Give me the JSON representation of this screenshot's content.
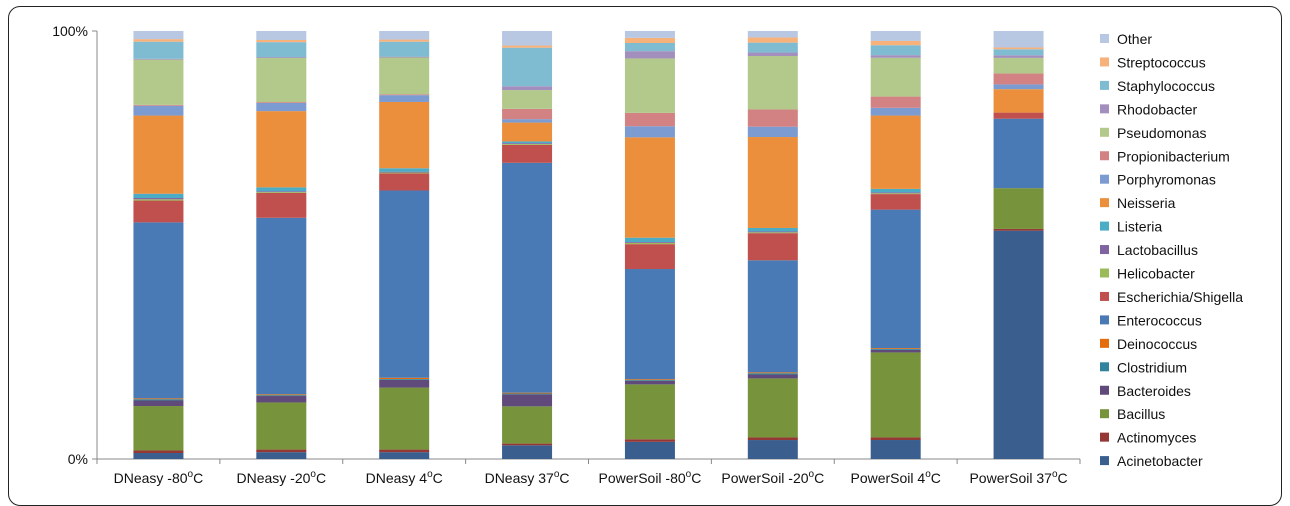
{
  "chart_data": {
    "type": "bar",
    "stacked": true,
    "normalized": true,
    "title": "",
    "xlabel": "",
    "ylabel": "",
    "ylim": [
      0,
      100
    ],
    "y_ticks": [
      "0%",
      "100%"
    ],
    "grid": false,
    "legend_position": "right",
    "categories": [
      {
        "name": "DNeasy -80",
        "unit_sup": "o",
        "unit": "C"
      },
      {
        "name": "DNeasy -20",
        "unit_sup": "o",
        "unit": "C"
      },
      {
        "name": "DNeasy 4",
        "unit_sup": "o",
        "unit": "C"
      },
      {
        "name": "DNeasy 37",
        "unit_sup": "o",
        "unit": "C"
      },
      {
        "name": "PowerSoil -80",
        "unit_sup": "o",
        "unit": "C"
      },
      {
        "name": "PowerSoil -20",
        "unit_sup": "o",
        "unit": "C"
      },
      {
        "name": "PowerSoil 4",
        "unit_sup": "o",
        "unit": "C"
      },
      {
        "name": "PowerSoil 37",
        "unit_sup": "o",
        "unit": "C"
      }
    ],
    "series": [
      {
        "name": "Acinetobacter",
        "color": "#3a5f8f",
        "values": [
          1.4,
          1.6,
          1.6,
          3.2,
          4.0,
          4.4,
          4.4,
          52.6
        ]
      },
      {
        "name": "Actinomyces",
        "color": "#953735",
        "values": [
          0.6,
          0.6,
          0.6,
          0.4,
          0.6,
          0.6,
          0.6,
          0.4
        ]
      },
      {
        "name": "Bacillus",
        "color": "#77933c",
        "values": [
          10.4,
          11.0,
          14.5,
          8.7,
          12.8,
          13.7,
          19.7,
          9.4
        ]
      },
      {
        "name": "Bacteroides",
        "color": "#604a7b",
        "values": [
          1.3,
          1.5,
          1.8,
          2.8,
          0.8,
          0.9,
          0.6,
          0.0
        ]
      },
      {
        "name": "Clostridium",
        "color": "#31849b",
        "values": [
          0.3,
          0.2,
          0.2,
          0.2,
          0.2,
          0.3,
          0.2,
          0.0
        ]
      },
      {
        "name": "Deinococcus",
        "color": "#e46c0a",
        "values": [
          0.2,
          0.2,
          0.3,
          0.2,
          0.2,
          0.2,
          0.2,
          0.0
        ]
      },
      {
        "name": "Enterococcus",
        "color": "#4a7ab5",
        "values": [
          41.2,
          41.2,
          43.8,
          53.7,
          25.7,
          26.0,
          32.1,
          16.0
        ]
      },
      {
        "name": "Escherichia/Shigella",
        "color": "#c0504d",
        "values": [
          5.1,
          5.8,
          4.0,
          4.2,
          5.8,
          6.3,
          3.6,
          1.4
        ]
      },
      {
        "name": "Helicobacter",
        "color": "#9bbb59",
        "values": [
          0.3,
          0.2,
          0.2,
          0.2,
          0.3,
          0.2,
          0.2,
          0.0
        ]
      },
      {
        "name": "Lactobacillus",
        "color": "#8064a2",
        "values": [
          0.3,
          0.2,
          0.2,
          0.2,
          0.2,
          0.2,
          0.2,
          0.0
        ]
      },
      {
        "name": "Listeria",
        "color": "#4bacc6",
        "values": [
          1.0,
          0.9,
          0.8,
          0.4,
          1.0,
          0.8,
          0.8,
          0.0
        ]
      },
      {
        "name": "Neisseria",
        "color": "#eb8f3c",
        "values": [
          18.3,
          17.8,
          15.5,
          4.4,
          23.4,
          21.1,
          17.0,
          5.4
        ]
      },
      {
        "name": "Porphyromonas",
        "color": "#7c9bd0",
        "values": [
          2.3,
          1.9,
          1.6,
          0.8,
          2.6,
          2.4,
          1.8,
          1.1
        ]
      },
      {
        "name": "Propionibacterium",
        "color": "#d28282",
        "values": [
          0.2,
          0.2,
          0.2,
          2.4,
          3.1,
          4.0,
          2.6,
          2.5
        ]
      },
      {
        "name": "Pseudomonas",
        "color": "#b3c98c",
        "values": [
          10.6,
          10.3,
          8.6,
          4.4,
          12.7,
          12.4,
          9.0,
          3.6
        ]
      },
      {
        "name": "Rhodobacter",
        "color": "#a38fbd",
        "values": [
          0.2,
          0.2,
          0.2,
          0.9,
          1.7,
          0.8,
          0.6,
          0.6
        ]
      },
      {
        "name": "Staphylococcus",
        "color": "#7fbcd2",
        "values": [
          4.0,
          3.5,
          3.5,
          9.0,
          1.9,
          2.3,
          2.3,
          1.4
        ]
      },
      {
        "name": "Streptococcus",
        "color": "#f7b27c",
        "values": [
          0.6,
          0.5,
          0.5,
          0.5,
          1.2,
          1.2,
          1.0,
          0.4
        ]
      },
      {
        "name": "Other",
        "color": "#b8c7e2",
        "values": [
          1.9,
          2.1,
          2.0,
          3.4,
          1.6,
          1.5,
          2.3,
          3.8
        ]
      }
    ]
  }
}
